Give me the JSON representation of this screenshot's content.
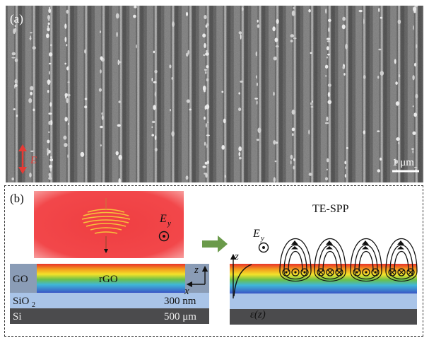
{
  "panel_a": {
    "label": "(a)",
    "polarization_label": "E",
    "scalebar_label": "1 μm"
  },
  "panel_b": {
    "label": "(b)",
    "field_label_left": "E",
    "field_label_left_sub": "y",
    "field_label_right": "E",
    "field_label_right_sub": "y",
    "te_spp_label": "TE-SPP",
    "go_label": "GO",
    "rgo_label": "rGO",
    "sio2_label": "SiO",
    "sio2_sub": "2",
    "sio2_thickness": "300 nm",
    "si_label": "Si",
    "si_thickness": "500 μm",
    "axis_z": "z",
    "axis_x": "x",
    "axis_z_right": "z",
    "epsilon_label": "ε(z)"
  },
  "colors": {
    "laser_box": "#f2474a",
    "wave_packet": "#f5b52a",
    "arrow_green": "#6a9a4a",
    "sio2": "#a9c4e8",
    "si": "#4b4b4d",
    "go": "#8a9cb6",
    "polarization_red": "#e53b35"
  }
}
